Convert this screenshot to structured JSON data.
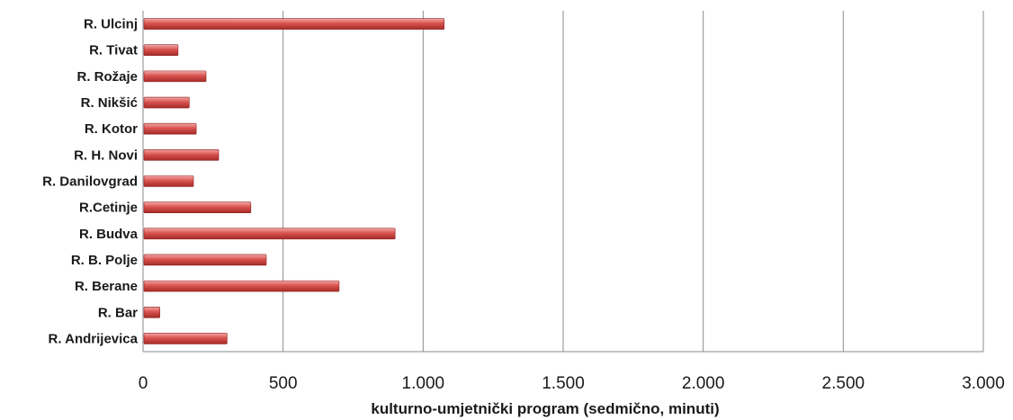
{
  "chart_data": {
    "type": "bar",
    "orientation": "horizontal",
    "categories": [
      "R. Andrijevica",
      "R. Bar",
      "R. Berane",
      "R. B. Polje",
      "R. Budva",
      "R.Cetinje",
      "R. Danilovgrad",
      "R. H. Novi",
      "R. Kotor",
      "R. Nikšić",
      "R. Rožaje",
      "R. Tivat",
      "R. Ulcinj"
    ],
    "values": [
      300,
      60,
      700,
      440,
      900,
      385,
      180,
      270,
      190,
      165,
      225,
      125,
      1075
    ],
    "xlabel": "kulturno-umjetnički program (sedmično, minuti)",
    "xlim": [
      0,
      3000
    ],
    "xticks": [
      0,
      500,
      1000,
      1500,
      2000,
      2500,
      3000
    ],
    "xtick_labels": [
      "0",
      "500",
      "1.000",
      "1.500",
      "2.000",
      "2.500",
      "3.000"
    ],
    "grid": "vertical",
    "legend": "none",
    "bar_color": "#d9534f"
  }
}
